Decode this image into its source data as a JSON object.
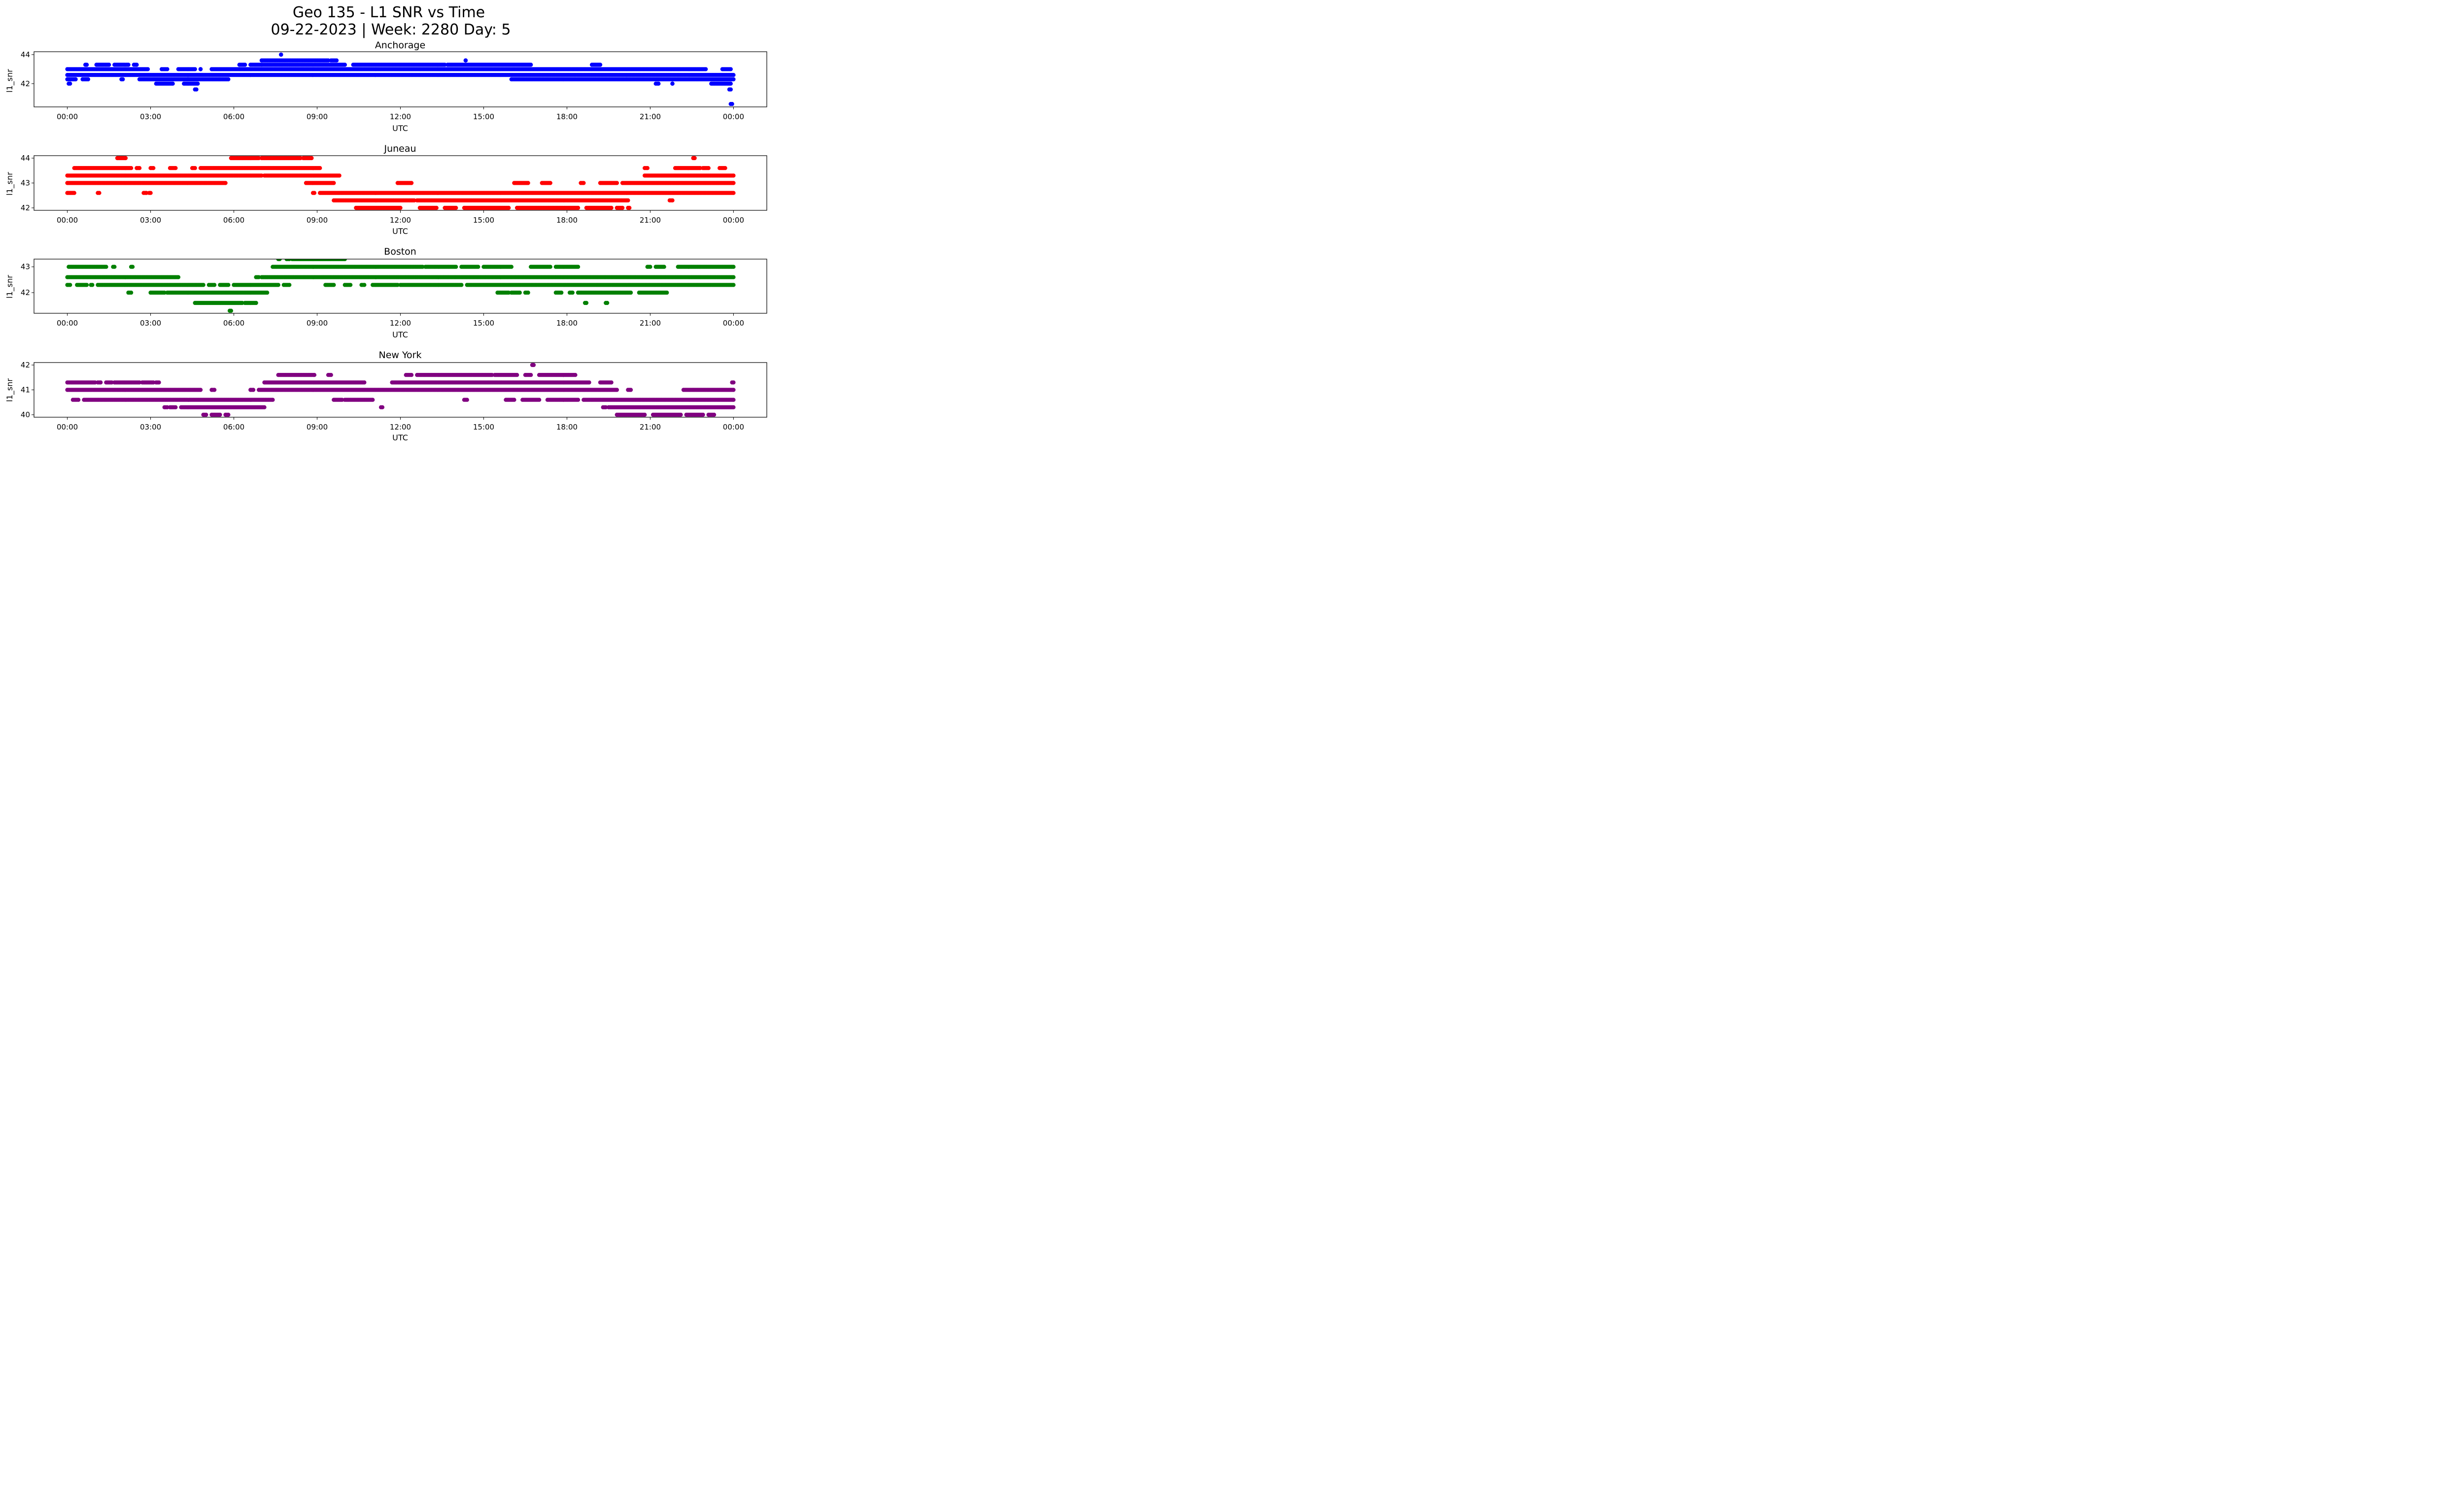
{
  "figure": {
    "title_line1": "Geo 135 - L1 SNR vs Time",
    "title_line2": "09-22-2023 | Week: 2280 Day: 5"
  },
  "chart_data": [
    {
      "type": "scatter",
      "title": "Anchorage",
      "xlabel": "UTC",
      "ylabel": "l1_snr",
      "color": "#0000ff",
      "xlim_hours": [
        -1.2,
        25.2
      ],
      "ylim": [
        40.4,
        44.2
      ],
      "yticks": [
        42,
        44
      ],
      "xtick_labels": [
        "00:00",
        "03:00",
        "06:00",
        "09:00",
        "12:00",
        "15:00",
        "18:00",
        "21:00",
        "00:00"
      ],
      "levels": [
        {
          "y": 43.0,
          "segments": [
            [
              0.0,
              2.9
            ],
            [
              3.4,
              3.6
            ],
            [
              4.0,
              4.6
            ],
            [
              4.8,
              4.8
            ],
            [
              5.2,
              23.0
            ],
            [
              23.6,
              23.9
            ]
          ]
        },
        {
          "y": 42.6,
          "segments": [
            [
              0.0,
              24.0
            ]
          ]
        },
        {
          "y": 42.3,
          "segments": [
            [
              0.0,
              0.3
            ],
            [
              0.55,
              0.75
            ],
            [
              1.95,
              2.0
            ],
            [
              2.6,
              5.8
            ],
            [
              16.0,
              24.0
            ]
          ]
        },
        {
          "y": 43.3,
          "segments": [
            [
              0.65,
              0.7
            ],
            [
              1.05,
              1.5
            ],
            [
              1.7,
              2.2
            ],
            [
              2.4,
              2.5
            ],
            [
              6.2,
              6.4
            ],
            [
              6.6,
              7.0
            ],
            [
              7.0,
              10.0
            ],
            [
              10.3,
              13.6
            ],
            [
              13.7,
              16.7
            ],
            [
              18.9,
              19.2
            ]
          ]
        },
        {
          "y": 43.6,
          "segments": [
            [
              7.0,
              9.4
            ],
            [
              9.5,
              9.7
            ],
            [
              14.35,
              14.35
            ]
          ]
        },
        {
          "y": 42.0,
          "segments": [
            [
              0.05,
              0.1
            ],
            [
              3.2,
              3.8
            ],
            [
              4.2,
              4.7
            ],
            [
              21.2,
              21.3
            ],
            [
              21.8,
              21.8
            ],
            [
              23.2,
              23.9
            ]
          ]
        },
        {
          "y": 44.0,
          "segments": [
            [
              7.7,
              7.7
            ]
          ]
        },
        {
          "y": 41.6,
          "segments": [
            [
              4.6,
              4.65
            ],
            [
              23.85,
              23.9
            ]
          ]
        },
        {
          "y": 40.6,
          "segments": [
            [
              23.9,
              23.95
            ]
          ]
        }
      ]
    },
    {
      "type": "scatter",
      "title": "Juneau",
      "xlabel": "UTC",
      "ylabel": "l1_snr",
      "color": "#ff0000",
      "xlim_hours": [
        -1.2,
        25.2
      ],
      "ylim": [
        41.9,
        44.1
      ],
      "yticks": [
        42,
        43,
        44
      ],
      "xtick_labels": [
        "00:00",
        "03:00",
        "06:00",
        "09:00",
        "12:00",
        "15:00",
        "18:00",
        "21:00",
        "00:00"
      ],
      "levels": [
        {
          "y": 42.6,
          "segments": [
            [
              0.0,
              0.25
            ],
            [
              1.1,
              1.15
            ],
            [
              2.75,
              2.85
            ],
            [
              2.95,
              3.0
            ],
            [
              8.85,
              8.9
            ],
            [
              9.1,
              24.0
            ]
          ]
        },
        {
          "y": 43.0,
          "segments": [
            [
              0.0,
              5.7
            ],
            [
              8.6,
              9.6
            ],
            [
              11.9,
              12.4
            ],
            [
              16.1,
              16.6
            ],
            [
              17.1,
              17.4
            ],
            [
              18.5,
              18.6
            ],
            [
              19.2,
              19.8
            ],
            [
              20.0,
              24.0
            ]
          ]
        },
        {
          "y": 43.3,
          "segments": [
            [
              0.0,
              7.0
            ],
            [
              7.1,
              9.8
            ],
            [
              20.8,
              24.0
            ]
          ]
        },
        {
          "y": 43.6,
          "segments": [
            [
              0.25,
              2.3
            ],
            [
              2.5,
              2.6
            ],
            [
              3.0,
              3.1
            ],
            [
              3.7,
              3.9
            ],
            [
              4.5,
              4.6
            ],
            [
              4.8,
              9.1
            ],
            [
              20.8,
              20.9
            ],
            [
              21.9,
              22.8
            ],
            [
              22.9,
              23.1
            ],
            [
              23.5,
              23.7
            ]
          ]
        },
        {
          "y": 44.0,
          "segments": [
            [
              1.8,
              2.1
            ],
            [
              5.9,
              6.9
            ],
            [
              7.0,
              8.4
            ],
            [
              8.5,
              8.8
            ],
            [
              22.55,
              22.6
            ]
          ]
        },
        {
          "y": 42.3,
          "segments": [
            [
              9.6,
              12.5
            ],
            [
              12.6,
              20.2
            ],
            [
              21.7,
              21.8
            ]
          ]
        },
        {
          "y": 42.0,
          "segments": [
            [
              10.4,
              12.0
            ],
            [
              12.7,
              13.3
            ],
            [
              13.6,
              14.0
            ],
            [
              14.3,
              15.9
            ],
            [
              16.2,
              18.4
            ],
            [
              18.7,
              19.6
            ],
            [
              19.8,
              20.0
            ],
            [
              20.2,
              20.25
            ]
          ]
        }
      ]
    },
    {
      "type": "scatter",
      "title": "Boston",
      "xlabel": "UTC",
      "ylabel": "l1_snr",
      "color": "#008000",
      "xlim_hours": [
        -1.2,
        25.2
      ],
      "ylim": [
        41.2,
        43.3
      ],
      "yticks": [
        42,
        43
      ],
      "xtick_labels": [
        "00:00",
        "03:00",
        "06:00",
        "09:00",
        "12:00",
        "15:00",
        "18:00",
        "21:00",
        "00:00"
      ],
      "levels": [
        {
          "y": 42.6,
          "segments": [
            [
              0.0,
              4.0
            ],
            [
              6.8,
              6.9
            ],
            [
              7.0,
              24.0
            ]
          ]
        },
        {
          "y": 43.0,
          "segments": [
            [
              0.05,
              1.4
            ],
            [
              1.65,
              1.7
            ],
            [
              2.3,
              2.35
            ],
            [
              7.4,
              12.8
            ],
            [
              12.9,
              14.0
            ],
            [
              14.2,
              14.8
            ],
            [
              15.0,
              16.0
            ],
            [
              16.7,
              17.4
            ],
            [
              17.6,
              18.4
            ],
            [
              20.9,
              21.0
            ],
            [
              21.2,
              21.5
            ],
            [
              22.0,
              24.0
            ]
          ]
        },
        {
          "y": 42.3,
          "segments": [
            [
              0.0,
              0.1
            ],
            [
              0.35,
              0.7
            ],
            [
              0.85,
              0.9
            ],
            [
              1.1,
              4.9
            ],
            [
              5.1,
              5.3
            ],
            [
              5.5,
              5.8
            ],
            [
              6.0,
              7.6
            ],
            [
              7.8,
              8.0
            ],
            [
              9.3,
              9.6
            ],
            [
              10.0,
              10.2
            ],
            [
              10.6,
              10.7
            ],
            [
              11.0,
              11.9
            ],
            [
              12.0,
              14.2
            ],
            [
              14.4,
              24.0
            ]
          ]
        },
        {
          "y": 42.0,
          "segments": [
            [
              2.2,
              2.3
            ],
            [
              3.0,
              3.5
            ],
            [
              3.6,
              7.2
            ],
            [
              15.5,
              15.9
            ],
            [
              16.0,
              16.3
            ],
            [
              16.5,
              16.6
            ],
            [
              17.6,
              17.8
            ],
            [
              18.1,
              18.2
            ],
            [
              18.4,
              20.3
            ],
            [
              20.6,
              21.6
            ]
          ]
        },
        {
          "y": 41.6,
          "segments": [
            [
              4.6,
              6.3
            ],
            [
              6.4,
              6.8
            ],
            [
              18.65,
              18.7
            ],
            [
              19.4,
              19.45
            ]
          ]
        },
        {
          "y": 41.3,
          "segments": [
            [
              5.85,
              5.9
            ]
          ]
        },
        {
          "y": 43.3,
          "segments": [
            [
              7.6,
              7.65
            ],
            [
              7.9,
              8.0
            ],
            [
              8.1,
              10.0
            ]
          ]
        }
      ]
    },
    {
      "type": "scatter",
      "title": "New York",
      "xlabel": "UTC",
      "ylabel": "l1_snr",
      "color": "#800080",
      "xlim_hours": [
        -1.2,
        25.2
      ],
      "ylim": [
        39.9,
        42.1
      ],
      "yticks": [
        40,
        41,
        42
      ],
      "xtick_labels": [
        "00:00",
        "03:00",
        "06:00",
        "09:00",
        "12:00",
        "15:00",
        "18:00",
        "21:00",
        "00:00"
      ],
      "levels": [
        {
          "y": 41.0,
          "segments": [
            [
              0.0,
              4.8
            ],
            [
              5.2,
              5.3
            ],
            [
              6.6,
              6.7
            ],
            [
              6.9,
              19.8
            ],
            [
              20.2,
              20.3
            ],
            [
              22.2,
              24.0
            ]
          ]
        },
        {
          "y": 41.3,
          "segments": [
            [
              0.0,
              1.0
            ],
            [
              1.1,
              1.2
            ],
            [
              1.4,
              1.6
            ],
            [
              1.7,
              2.6
            ],
            [
              2.7,
              3.1
            ],
            [
              3.2,
              3.3
            ],
            [
              7.1,
              10.7
            ],
            [
              11.7,
              18.8
            ],
            [
              19.2,
              19.6
            ],
            [
              23.95,
              24.0
            ]
          ]
        },
        {
          "y": 40.6,
          "segments": [
            [
              0.2,
              0.4
            ],
            [
              0.6,
              7.4
            ],
            [
              9.6,
              9.9
            ],
            [
              10.0,
              11.0
            ],
            [
              14.3,
              14.4
            ],
            [
              15.8,
              16.1
            ],
            [
              16.4,
              17.0
            ],
            [
              17.3,
              18.4
            ],
            [
              18.6,
              24.0
            ]
          ]
        },
        {
          "y": 40.3,
          "segments": [
            [
              3.5,
              3.6
            ],
            [
              3.7,
              3.9
            ],
            [
              4.1,
              7.1
            ],
            [
              11.3,
              11.35
            ],
            [
              19.3,
              19.4
            ],
            [
              19.5,
              24.0
            ]
          ]
        },
        {
          "y": 40.0,
          "segments": [
            [
              4.9,
              5.0
            ],
            [
              5.2,
              5.5
            ],
            [
              5.7,
              5.8
            ],
            [
              19.8,
              20.8
            ],
            [
              21.1,
              22.1
            ],
            [
              22.3,
              22.9
            ],
            [
              23.1,
              23.3
            ]
          ]
        },
        {
          "y": 41.6,
          "segments": [
            [
              7.6,
              8.9
            ],
            [
              9.4,
              9.5
            ],
            [
              12.2,
              12.4
            ],
            [
              12.6,
              15.3
            ],
            [
              15.4,
              16.2
            ],
            [
              16.5,
              16.7
            ],
            [
              17.0,
              18.3
            ]
          ]
        },
        {
          "y": 42.0,
          "segments": [
            [
              16.75,
              16.8
            ]
          ]
        }
      ]
    }
  ]
}
